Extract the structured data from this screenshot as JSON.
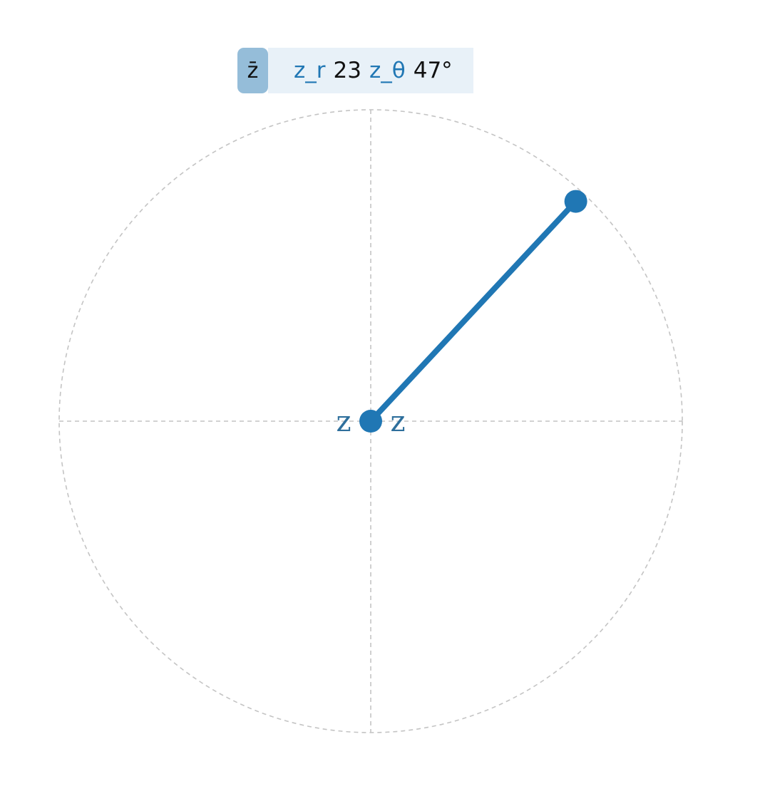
{
  "toolbar": {
    "conjugate_label": "z̄",
    "modulus_label": "z_r",
    "modulus_value": "23",
    "argument_label": "z_θ",
    "argument_value": "47°"
  },
  "plane": {
    "point_modulus": 23,
    "point_argument_deg": 47,
    "circle_radius": 23,
    "origin_label_left": "z",
    "origin_label_right": "z",
    "accent_color": "#2077b4",
    "guide_color": "#c4c4c4"
  }
}
